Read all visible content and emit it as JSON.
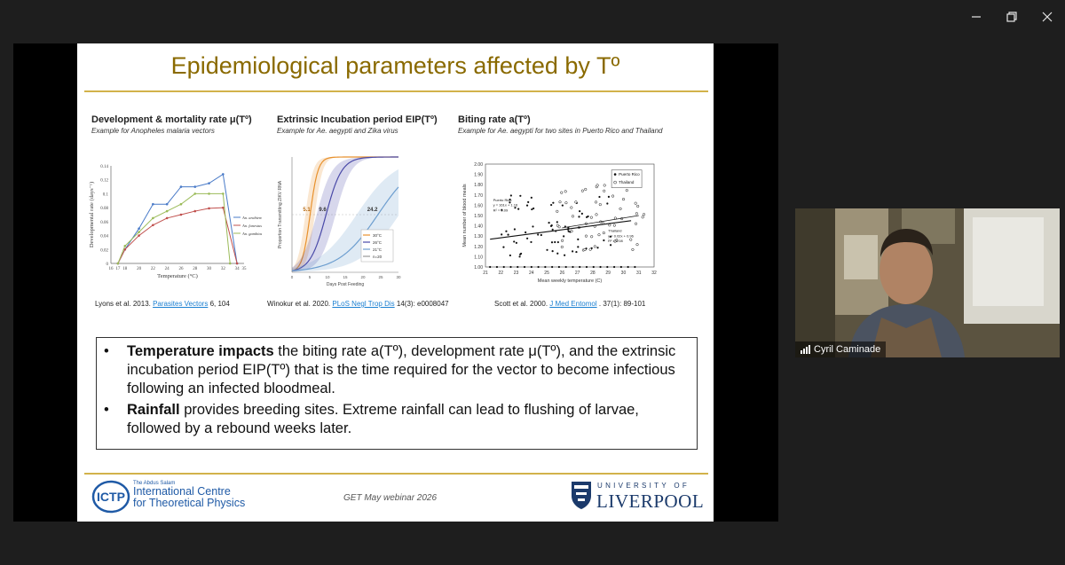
{
  "slide": {
    "title": "Epidemiological parameters affected by Tº",
    "panels": [
      {
        "title": "Development & mortality rate μ(Tº)",
        "subtitle": "Example for Anopheles malaria vectors",
        "citation_prefix": "Lyons et al. 2013.",
        "citation_link": "Parasites Vectors",
        "citation_suffix": "6, 104"
      },
      {
        "title": "Extrinsic Incubation period EIP(Tº)",
        "subtitle": "Example for Ae. aegypti and Zika virus",
        "citation_prefix": "Winokur et al. 2020.",
        "citation_link": "PLoS Negl Trop Dis",
        "citation_suffix": "14(3): e0008047"
      },
      {
        "title": "Biting rate a(Tº)",
        "subtitle": "Example for Ae. aegypti for two sites in Puerto Rico and Thailand",
        "citation_prefix": "Scott et al. 2000.",
        "citation_link": "J Med Entomol",
        "citation_suffix": ". 37(1): 89-101"
      }
    ],
    "bullets": [
      {
        "bold": "Temperature impacts",
        "text": " the biting rate a(Tº), development rate μ(Tº), and the extrinsic incubation period EIP(Tº) that is the time required for the vector to become infectious following an infected bloodmeal."
      },
      {
        "bold": "Rainfall",
        "text": " provides breeding sites. Extreme rainfall can lead to flushing of larvae, followed by a rebound weeks later."
      }
    ],
    "footer": {
      "ictp_small": "The Abdus Salam",
      "ictp_line1": "International Centre",
      "ictp_line2": "for Theoretical Physics",
      "ictp_mark": "ICTP",
      "center": "GET May webinar 2026",
      "liverpool_top": "UNIVERSITY OF",
      "liverpool_name": "LIVERPOOL"
    }
  },
  "chart_data": [
    {
      "type": "line",
      "xlabel": "Temperature (°C)",
      "ylabel": "Developmental rate (days⁻¹)",
      "x": [
        17,
        16,
        18,
        20,
        22,
        24,
        26,
        28,
        30,
        32,
        34,
        35
      ],
      "yticks": [
        "0",
        "0.02",
        "0.04",
        "0.06",
        "0.08",
        "0.1",
        "0.12",
        "0.14"
      ],
      "ylim": [
        0,
        0.14
      ],
      "series": [
        {
          "name": "An. arabiensis",
          "color": "#4a7bc8",
          "points": [
            [
              17,
              0
            ],
            [
              18,
              0.02
            ],
            [
              20,
              0.05
            ],
            [
              22,
              0.085
            ],
            [
              24,
              0.085
            ],
            [
              26,
              0.11
            ],
            [
              28,
              0.11
            ],
            [
              30,
              0.115
            ],
            [
              32,
              0.128
            ],
            [
              34,
              0
            ]
          ]
        },
        {
          "name": "An. funestus",
          "color": "#c0504d",
          "points": [
            [
              17,
              0
            ],
            [
              18,
              0.02
            ],
            [
              20,
              0.04
            ],
            [
              22,
              0.055
            ],
            [
              24,
              0.065
            ],
            [
              26,
              0.07
            ],
            [
              28,
              0.075
            ],
            [
              30,
              0.079
            ],
            [
              32,
              0.08
            ],
            [
              34,
              0.0
            ]
          ]
        },
        {
          "name": "An. gambiae",
          "color": "#9bbb59",
          "points": [
            [
              17,
              0
            ],
            [
              18,
              0.025
            ],
            [
              20,
              0.045
            ],
            [
              22,
              0.065
            ],
            [
              24,
              0.075
            ],
            [
              26,
              0.085
            ],
            [
              28,
              0.1
            ],
            [
              30,
              0.1
            ],
            [
              32,
              0.1
            ],
            [
              33,
              0
            ]
          ]
        }
      ]
    },
    {
      "type": "line",
      "xlabel": "Days Post Feeding",
      "ylabel": "Proportion Transmitting ZIKV RNA",
      "xticks": [
        "0",
        "5",
        "10",
        "15",
        "20",
        "25",
        "30"
      ],
      "annotations": [
        "5.1",
        "9.6",
        "24.2"
      ],
      "series": [
        {
          "name": "30°C",
          "color": "#e8912d",
          "ec50": 5.1
        },
        {
          "name": "26°C",
          "color": "#4a4aa8",
          "ec50": 9.6
        },
        {
          "name": "21°C",
          "color": "#6d9ecf",
          "ec50": 24.2
        },
        {
          "name": "n=20",
          "color": "#999999"
        }
      ]
    },
    {
      "type": "scatter",
      "xlabel": "Mean weekly temperature (C)",
      "ylabel": "Mean number of blood meals",
      "xticks": [
        "21",
        "22",
        "23",
        "24",
        "25",
        "26",
        "27",
        "28",
        "29",
        "30",
        "31",
        "32"
      ],
      "yticks": [
        "1.00",
        "1.10",
        "1.20",
        "1.30",
        "1.40",
        "1.50",
        "1.60",
        "1.70",
        "1.80",
        "1.90",
        "2.00"
      ],
      "xlim": [
        21,
        32
      ],
      "ylim": [
        1.0,
        2.0
      ],
      "series": [
        {
          "name": "Puerto Rico",
          "marker": "filled",
          "fit": "y = 161x + 1.16",
          "r2": "R² = 0.09"
        },
        {
          "name": "Thailand",
          "marker": "open",
          "fit": "y = 0.02x + 0.96",
          "r2": "R² = 0.08"
        }
      ]
    }
  ],
  "video": {
    "participant": "Cyril Caminade"
  }
}
